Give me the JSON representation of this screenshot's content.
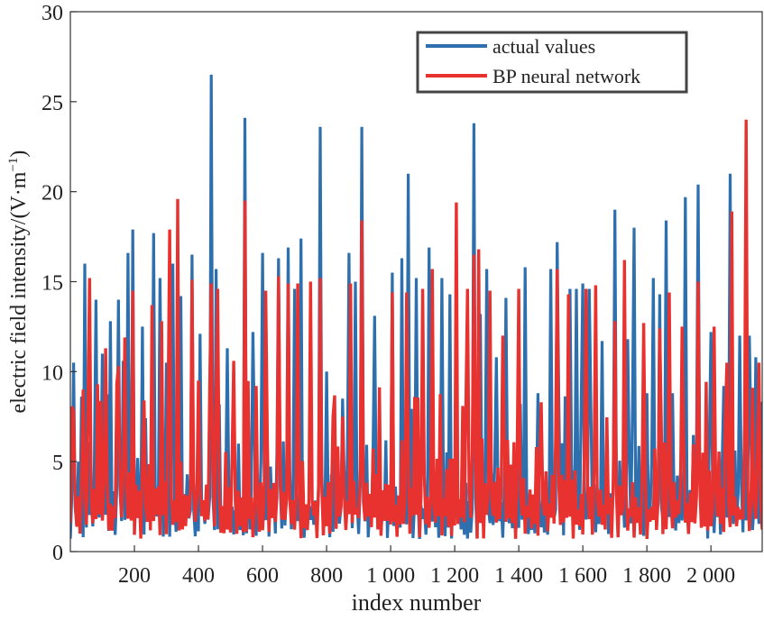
{
  "chart_data": {
    "type": "line",
    "title": "",
    "xlabel": "index number",
    "ylabel": "electric field intensity/(V·m⁻¹)",
    "ylabel_main": "electric field intensity/(V·m",
    "ylabel_sup": "−1",
    "ylabel_close": ")",
    "xlim": [
      0,
      2160
    ],
    "ylim": [
      0,
      30
    ],
    "xticks": [
      200,
      400,
      600,
      800,
      1000,
      1200,
      1400,
      1600,
      1800,
      2000
    ],
    "xtick_labels": [
      "200",
      "400",
      "600",
      "800",
      "1 000",
      "1 200",
      "1 400",
      "1 600",
      "1 800",
      "2 000"
    ],
    "yticks": [
      0,
      5,
      10,
      15,
      20,
      25,
      30
    ],
    "ytick_labels": [
      "0",
      "5",
      "10",
      "15",
      "20",
      "25",
      "30"
    ],
    "grid": false,
    "legend": {
      "position": "top-right",
      "entries": [
        "actual values",
        "BP neural network"
      ]
    },
    "series": [
      {
        "name": "actual values",
        "color": "#2e6fad",
        "peaks": [
          [
            10,
            10.5
          ],
          [
            25,
            5
          ],
          [
            45,
            16
          ],
          [
            80,
            14
          ],
          [
            100,
            11
          ],
          [
            125,
            12.8
          ],
          [
            150,
            14
          ],
          [
            165,
            10.6
          ],
          [
            180,
            16.6
          ],
          [
            195,
            17.9
          ],
          [
            210,
            5.2
          ],
          [
            225,
            12.5
          ],
          [
            260,
            17.7
          ],
          [
            280,
            15.2
          ],
          [
            300,
            10.5
          ],
          [
            320,
            16
          ],
          [
            345,
            14.2
          ],
          [
            380,
            16.5
          ],
          [
            405,
            12.1
          ],
          [
            440,
            26.5
          ],
          [
            455,
            15.7
          ],
          [
            490,
            11.3
          ],
          [
            545,
            24.1
          ],
          [
            570,
            12.2
          ],
          [
            600,
            16.6
          ],
          [
            650,
            16.3
          ],
          [
            680,
            16.9
          ],
          [
            700,
            14.6
          ],
          [
            720,
            17.4
          ],
          [
            780,
            23.6
          ],
          [
            800,
            10
          ],
          [
            850,
            8.5
          ],
          [
            870,
            16.6
          ],
          [
            890,
            15
          ],
          [
            910,
            23.6
          ],
          [
            950,
            13.1
          ],
          [
            1005,
            15.5
          ],
          [
            1035,
            16.3
          ],
          [
            1055,
            21
          ],
          [
            1080,
            15.2
          ],
          [
            1120,
            16.9
          ],
          [
            1160,
            15.2
          ],
          [
            1185,
            14.3
          ],
          [
            1260,
            23.8
          ],
          [
            1280,
            13.2
          ],
          [
            1300,
            15.7
          ],
          [
            1330,
            10.8
          ],
          [
            1360,
            14.1
          ],
          [
            1420,
            15.8
          ],
          [
            1460,
            8.8
          ],
          [
            1500,
            15.7
          ],
          [
            1520,
            17.2
          ],
          [
            1560,
            14.6
          ],
          [
            1580,
            14.6
          ],
          [
            1600,
            14.9
          ],
          [
            1620,
            14.6
          ],
          [
            1660,
            11.7
          ],
          [
            1700,
            19
          ],
          [
            1740,
            11.8
          ],
          [
            1760,
            18
          ],
          [
            1800,
            8.8
          ],
          [
            1820,
            15.2
          ],
          [
            1840,
            14.3
          ],
          [
            1860,
            18.4
          ],
          [
            1880,
            8.8
          ],
          [
            1920,
            19.7
          ],
          [
            1960,
            20.4
          ],
          [
            2000,
            12.2
          ],
          [
            2040,
            9.2
          ],
          [
            2060,
            21
          ],
          [
            2090,
            12
          ],
          [
            2120,
            12
          ],
          [
            2140,
            10.8
          ]
        ]
      },
      {
        "name": "BP neural network",
        "color": "#e8322f",
        "peaks": [
          [
            10,
            7.8
          ],
          [
            40,
            9
          ],
          [
            60,
            15.2
          ],
          [
            85,
            9.3
          ],
          [
            110,
            11.3
          ],
          [
            150,
            10.3
          ],
          [
            170,
            11.9
          ],
          [
            195,
            14.5
          ],
          [
            230,
            8.4
          ],
          [
            255,
            13.7
          ],
          [
            285,
            12.8
          ],
          [
            310,
            17.9
          ],
          [
            335,
            19.6
          ],
          [
            380,
            15.1
          ],
          [
            400,
            9.5
          ],
          [
            440,
            14.9
          ],
          [
            460,
            14.6
          ],
          [
            510,
            10.6
          ],
          [
            545,
            19.5
          ],
          [
            580,
            9.2
          ],
          [
            610,
            14.5
          ],
          [
            650,
            15.3
          ],
          [
            680,
            14.9
          ],
          [
            710,
            14.9
          ],
          [
            750,
            15
          ],
          [
            780,
            15.2
          ],
          [
            820,
            7.5
          ],
          [
            850,
            7.5
          ],
          [
            875,
            14.9
          ],
          [
            910,
            18.4
          ],
          [
            1005,
            14.4
          ],
          [
            1050,
            14.4
          ],
          [
            1100,
            14.6
          ],
          [
            1130,
            15.7
          ],
          [
            1205,
            19.4
          ],
          [
            1240,
            14.6
          ],
          [
            1260,
            16.5
          ],
          [
            1275,
            16.8
          ],
          [
            1310,
            14.5
          ],
          [
            1350,
            12
          ],
          [
            1400,
            14.6
          ],
          [
            1470,
            8.3
          ],
          [
            1520,
            15.7
          ],
          [
            1555,
            14.3
          ],
          [
            1610,
            14.6
          ],
          [
            1640,
            14.8
          ],
          [
            1700,
            12.8
          ],
          [
            1730,
            16.2
          ],
          [
            1790,
            12.7
          ],
          [
            1840,
            12.4
          ],
          [
            1870,
            14.4
          ],
          [
            1910,
            12.5
          ],
          [
            1960,
            15
          ],
          [
            2010,
            12.5
          ],
          [
            2050,
            10.5
          ],
          [
            2065,
            18.9
          ],
          [
            2110,
            24
          ],
          [
            2130,
            9.1
          ],
          [
            2150,
            10.5
          ]
        ]
      }
    ]
  }
}
